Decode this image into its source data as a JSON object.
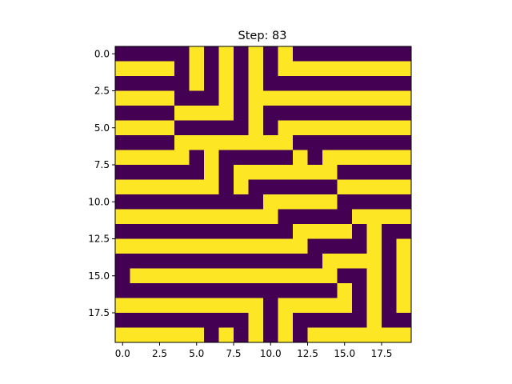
{
  "chart_data": {
    "type": "heatmap",
    "title": "Step: 83",
    "xlabel": "",
    "ylabel": "",
    "xlim": [
      -0.5,
      19.5
    ],
    "ylim": [
      19.5,
      -0.5
    ],
    "x_ticks": [
      0.0,
      2.5,
      5.0,
      7.5,
      10.0,
      12.5,
      15.0,
      17.5
    ],
    "x_tick_labels": [
      "0.0",
      "2.5",
      "5.0",
      "7.5",
      "10.0",
      "12.5",
      "15.0",
      "17.5"
    ],
    "y_ticks": [
      0.0,
      2.5,
      5.0,
      7.5,
      10.0,
      12.5,
      15.0,
      17.5
    ],
    "y_tick_labels": [
      "0.0",
      "2.5",
      "5.0",
      "7.5",
      "10.0",
      "12.5",
      "15.0",
      "17.5"
    ],
    "colormap": "viridis",
    "colors": {
      "0": "#440154",
      "1": "#fde725"
    },
    "grid": [
      [
        0,
        0,
        0,
        0,
        0,
        1,
        0,
        1,
        0,
        1,
        0,
        1,
        0,
        0,
        0,
        0,
        0,
        0,
        0,
        0
      ],
      [
        1,
        1,
        1,
        1,
        0,
        1,
        0,
        1,
        0,
        1,
        0,
        1,
        1,
        1,
        1,
        1,
        1,
        1,
        1,
        1
      ],
      [
        0,
        0,
        0,
        0,
        0,
        1,
        0,
        1,
        0,
        1,
        0,
        0,
        0,
        0,
        0,
        0,
        0,
        0,
        0,
        0
      ],
      [
        1,
        1,
        1,
        1,
        0,
        0,
        0,
        1,
        0,
        1,
        1,
        1,
        1,
        1,
        1,
        1,
        1,
        1,
        1,
        1
      ],
      [
        0,
        0,
        0,
        0,
        1,
        1,
        1,
        1,
        0,
        1,
        0,
        0,
        0,
        0,
        0,
        0,
        0,
        0,
        0,
        0
      ],
      [
        1,
        1,
        1,
        1,
        0,
        0,
        0,
        0,
        0,
        1,
        0,
        1,
        1,
        1,
        1,
        1,
        1,
        1,
        1,
        1
      ],
      [
        0,
        0,
        0,
        0,
        1,
        1,
        1,
        1,
        1,
        1,
        1,
        1,
        0,
        0,
        0,
        0,
        0,
        0,
        0,
        0
      ],
      [
        1,
        1,
        1,
        1,
        1,
        0,
        1,
        0,
        0,
        0,
        0,
        0,
        1,
        0,
        1,
        1,
        1,
        1,
        1,
        1
      ],
      [
        0,
        0,
        0,
        0,
        0,
        0,
        1,
        0,
        1,
        1,
        1,
        1,
        1,
        1,
        1,
        0,
        0,
        0,
        0,
        0
      ],
      [
        1,
        1,
        1,
        1,
        1,
        1,
        1,
        0,
        1,
        0,
        0,
        0,
        0,
        0,
        0,
        1,
        1,
        1,
        1,
        1
      ],
      [
        0,
        0,
        0,
        0,
        0,
        0,
        0,
        0,
        0,
        0,
        1,
        1,
        1,
        1,
        1,
        0,
        0,
        0,
        0,
        0
      ],
      [
        1,
        1,
        1,
        1,
        1,
        1,
        1,
        1,
        1,
        1,
        1,
        0,
        0,
        0,
        0,
        0,
        1,
        1,
        1,
        1
      ],
      [
        0,
        0,
        0,
        0,
        0,
        0,
        0,
        0,
        0,
        0,
        0,
        0,
        1,
        1,
        1,
        1,
        0,
        1,
        0,
        0
      ],
      [
        1,
        1,
        1,
        1,
        1,
        1,
        1,
        1,
        1,
        1,
        1,
        1,
        1,
        0,
        0,
        0,
        0,
        1,
        0,
        1
      ],
      [
        0,
        0,
        0,
        0,
        0,
        0,
        0,
        0,
        0,
        0,
        0,
        0,
        0,
        0,
        1,
        1,
        1,
        1,
        0,
        1
      ],
      [
        0,
        1,
        1,
        1,
        1,
        1,
        1,
        1,
        1,
        1,
        1,
        1,
        1,
        1,
        1,
        0,
        0,
        1,
        0,
        1
      ],
      [
        0,
        0,
        0,
        0,
        0,
        0,
        0,
        0,
        0,
        0,
        0,
        0,
        0,
        0,
        0,
        1,
        0,
        1,
        0,
        1
      ],
      [
        1,
        1,
        1,
        1,
        1,
        1,
        1,
        1,
        1,
        1,
        0,
        1,
        1,
        1,
        1,
        1,
        0,
        1,
        0,
        1
      ],
      [
        0,
        0,
        0,
        0,
        0,
        0,
        0,
        0,
        0,
        1,
        0,
        1,
        0,
        0,
        0,
        0,
        0,
        1,
        0,
        0
      ],
      [
        1,
        1,
        1,
        1,
        1,
        1,
        0,
        1,
        0,
        1,
        0,
        1,
        0,
        1,
        1,
        1,
        1,
        1,
        1,
        1
      ]
    ]
  }
}
